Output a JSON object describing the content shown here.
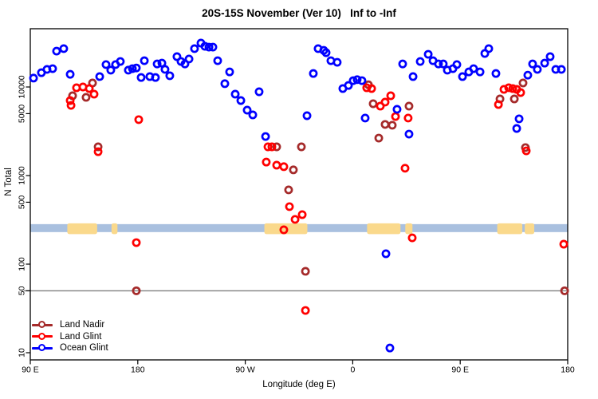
{
  "title": "20S-15S November (Ver 10)   Inf to -Inf",
  "x_axis_label": "Longitude (deg E)",
  "y_axis_label": "N Total",
  "colors": {
    "land_nadir": "#A52A2A",
    "land_glint": "#FF0000",
    "ocean_glint": "#0000FF",
    "map_ocean": "#A9C0DF",
    "map_land": "#FAD98C",
    "reference_line": "#808080",
    "axis": "#000000",
    "background": "#FFFFFF"
  },
  "legend": {
    "items": [
      {
        "label": "Land Nadir",
        "color": "#A52A2A"
      },
      {
        "label": "Land Glint",
        "color": "#FF0000"
      },
      {
        "label": "Ocean Glint",
        "color": "#0000FF"
      }
    ]
  },
  "chart_data": {
    "type": "scatter",
    "title": "20S-15S November (Ver 10)   Inf to -Inf",
    "xlabel": "Longitude (deg E)",
    "ylabel": "N Total",
    "x_axis": {
      "range_deg": [
        90,
        540
      ],
      "ticks_deg": [
        90,
        180,
        270,
        360,
        450,
        540
      ],
      "tick_labels": [
        "90 E",
        "180",
        "90 W",
        "0",
        "90 E",
        "180"
      ]
    },
    "y_axis": {
      "scale": "log10",
      "range": [
        8,
        46000
      ],
      "ticks": [
        10,
        50,
        100,
        500,
        1000,
        5000,
        10000
      ],
      "tick_labels": [
        "10",
        "50",
        "100",
        "500",
        "1000",
        "5000",
        "10000"
      ]
    },
    "reference_line_n": 50,
    "map_band": {
      "n_range": [
        230,
        283
      ],
      "land_segments_deg": [
        [
          121,
          146
        ],
        [
          158,
          163
        ],
        [
          286,
          322
        ],
        [
          372,
          400
        ],
        [
          404,
          410
        ],
        [
          481,
          502
        ],
        [
          504,
          512
        ]
      ]
    },
    "series": [
      {
        "name": "Land Nadir",
        "color": "#A52A2A",
        "points": [
          [
            142.1,
            11100
          ],
          [
            125.4,
            7960
          ],
          [
            136.7,
            7640
          ],
          [
            146.8,
            2110
          ],
          [
            178.8,
            50
          ],
          [
            296.3,
            2110
          ],
          [
            317,
            2110
          ],
          [
            310.3,
            1160
          ],
          [
            306.3,
            689
          ],
          [
            320.4,
            83
          ],
          [
            373.1,
            10600
          ],
          [
            377.1,
            6470
          ],
          [
            381.8,
            2650
          ],
          [
            387.1,
            3780
          ],
          [
            393.1,
            3700
          ],
          [
            407.1,
            6080
          ],
          [
            483.3,
            7330
          ],
          [
            495.3,
            7330
          ],
          [
            502.6,
            11100
          ],
          [
            504.6,
            2070
          ],
          [
            537.4,
            50
          ]
        ]
      },
      {
        "name": "Land Glint",
        "color": "#FF0000",
        "points": [
          [
            128.7,
            9800
          ],
          [
            134.1,
            10000
          ],
          [
            139.4,
            9600
          ],
          [
            143.4,
            8300
          ],
          [
            123.4,
            7030
          ],
          [
            124.1,
            6200
          ],
          [
            146.8,
            1860
          ],
          [
            180.8,
            4280
          ],
          [
            178.8,
            175
          ],
          [
            289,
            2110
          ],
          [
            292.3,
            2110
          ],
          [
            287.6,
            1420
          ],
          [
            296.3,
            1310
          ],
          [
            302.3,
            1260
          ],
          [
            307,
            446
          ],
          [
            311.7,
            320
          ],
          [
            317.7,
            362
          ],
          [
            302.3,
            244
          ],
          [
            320.4,
            30
          ],
          [
            371.7,
            9800
          ],
          [
            375.8,
            9600
          ],
          [
            383.1,
            6080
          ],
          [
            387.1,
            6750
          ],
          [
            391.8,
            7960
          ],
          [
            395.8,
            4640
          ],
          [
            403.8,
            1210
          ],
          [
            406.4,
            4460
          ],
          [
            409.8,
            198
          ],
          [
            482,
            6340
          ],
          [
            486.6,
            9400
          ],
          [
            490.6,
            9800
          ],
          [
            494,
            9600
          ],
          [
            497.3,
            9400
          ],
          [
            500.6,
            8650
          ],
          [
            505.3,
            1900
          ],
          [
            536.7,
            168
          ]
        ]
      },
      {
        "name": "Ocean Glint",
        "color": "#0000FF",
        "points": [
          [
            92.7,
            12600
          ],
          [
            99.3,
            14500
          ],
          [
            104,
            15800
          ],
          [
            108.7,
            16100
          ],
          [
            112,
            25400
          ],
          [
            118,
            27100
          ],
          [
            123.4,
            13900
          ],
          [
            148.1,
            13100
          ],
          [
            153.4,
            17900
          ],
          [
            157.4,
            15500
          ],
          [
            161.4,
            17900
          ],
          [
            165.4,
            19400
          ],
          [
            172.1,
            15500
          ],
          [
            175.5,
            16100
          ],
          [
            178.8,
            16400
          ],
          [
            182.8,
            12800
          ],
          [
            185.5,
            19800
          ],
          [
            190.1,
            13100
          ],
          [
            194.8,
            12800
          ],
          [
            196.2,
            18200
          ],
          [
            200.2,
            18600
          ],
          [
            202.8,
            15800
          ],
          [
            206.8,
            13400
          ],
          [
            212.8,
            22000
          ],
          [
            216.2,
            19400
          ],
          [
            219.5,
            18200
          ],
          [
            222.9,
            20700
          ],
          [
            227.5,
            27100
          ],
          [
            232.9,
            31300
          ],
          [
            236.2,
            28800
          ],
          [
            239.6,
            28200
          ],
          [
            242.9,
            28200
          ],
          [
            246.9,
            19800
          ],
          [
            252.9,
            10900
          ],
          [
            256.9,
            14800
          ],
          [
            261.6,
            8300
          ],
          [
            266.3,
            7030
          ],
          [
            271.6,
            5480
          ],
          [
            276.3,
            4840
          ],
          [
            281.6,
            8830
          ],
          [
            287,
            2760
          ],
          [
            321.7,
            4740
          ],
          [
            327,
            14200
          ],
          [
            331,
            27100
          ],
          [
            335.7,
            25900
          ],
          [
            337.7,
            24400
          ],
          [
            341.7,
            19800
          ],
          [
            347,
            19000
          ],
          [
            351.7,
            9600
          ],
          [
            356.4,
            10400
          ],
          [
            360.4,
            11800
          ],
          [
            363.7,
            12100
          ],
          [
            367.7,
            11800
          ],
          [
            370.4,
            4460
          ],
          [
            387.8,
            131
          ],
          [
            391.1,
            11.3
          ],
          [
            397.1,
            5600
          ],
          [
            401.8,
            18200
          ],
          [
            407.1,
            2940
          ],
          [
            410.5,
            13100
          ],
          [
            416.5,
            19400
          ],
          [
            423.2,
            23400
          ],
          [
            427.2,
            19800
          ],
          [
            431.8,
            18200
          ],
          [
            435.8,
            18200
          ],
          [
            439.2,
            15500
          ],
          [
            443.9,
            16100
          ],
          [
            447.2,
            17900
          ],
          [
            451.9,
            13100
          ],
          [
            457.2,
            14800
          ],
          [
            461.2,
            16100
          ],
          [
            466.6,
            14800
          ],
          [
            470.6,
            23900
          ],
          [
            473.9,
            27100
          ],
          [
            479.9,
            14200
          ],
          [
            497.3,
            3400
          ],
          [
            499.3,
            4370
          ],
          [
            506.6,
            13600
          ],
          [
            510.6,
            18200
          ],
          [
            514.6,
            15800
          ],
          [
            520.7,
            18600
          ],
          [
            525.3,
            22000
          ],
          [
            530,
            15800
          ],
          [
            534.7,
            15800
          ]
        ]
      }
    ]
  }
}
